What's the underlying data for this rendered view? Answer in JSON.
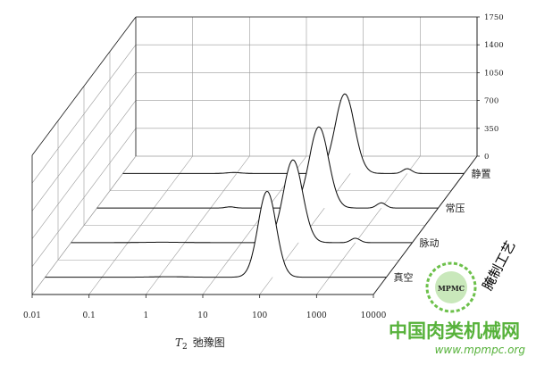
{
  "chart_data": {
    "type": "line",
    "subtype": "3d-waterfall",
    "xlabel": "T2 弛豫图",
    "xlabel_parts": {
      "var": "T",
      "sub": "2",
      "rest": "弛豫图"
    },
    "ylabel": "腌制工艺",
    "x_scale": "log",
    "xlim": [
      0.01,
      10000
    ],
    "x_ticks": [
      "0.01",
      "0.1",
      "1",
      "10",
      "100",
      "1000",
      "10000"
    ],
    "zlim": [
      0,
      1750
    ],
    "z_ticks": [
      "0",
      "350",
      "700",
      "1050",
      "1400",
      "1750"
    ],
    "grid": true,
    "series": [
      {
        "name": "真空",
        "peaks": [
          {
            "t2": 80,
            "amp": 1080,
            "width": 0.16
          },
          {
            "t2": 1.5,
            "amp": 6,
            "width": 0.3
          }
        ]
      },
      {
        "name": "脉动",
        "peaks": [
          {
            "t2": 80,
            "amp": 1040,
            "width": 0.17
          },
          {
            "t2": 1000,
            "amp": 55,
            "width": 0.08
          },
          {
            "t2": 0.4,
            "amp": 5,
            "width": 0.35
          }
        ]
      },
      {
        "name": "常压",
        "peaks": [
          {
            "t2": 80,
            "amp": 1020,
            "width": 0.17
          },
          {
            "t2": 1000,
            "amp": 65,
            "width": 0.08
          },
          {
            "t2": 2.2,
            "amp": 15,
            "width": 0.08
          }
        ]
      },
      {
        "name": "静置",
        "peaks": [
          {
            "t2": 80,
            "amp": 1000,
            "width": 0.17
          },
          {
            "t2": 1000,
            "amp": 60,
            "width": 0.08
          },
          {
            "t2": 0.9,
            "amp": 12,
            "width": 0.12
          }
        ]
      }
    ]
  },
  "watermark": {
    "title": "中国肉类机械网",
    "url": "www.mpmpc.org",
    "logo_text": "MPMC"
  }
}
